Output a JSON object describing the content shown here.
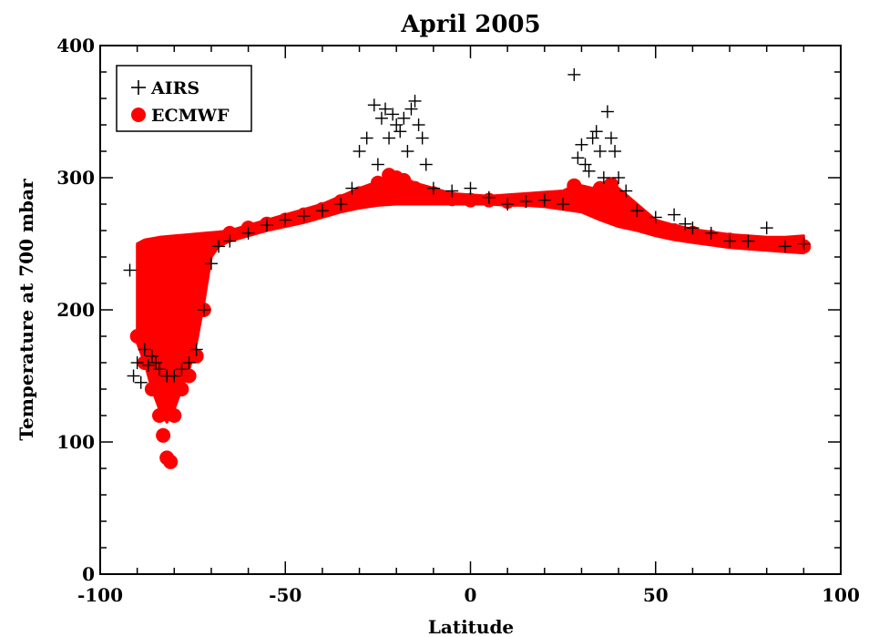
{
  "chart_data": {
    "type": "scatter",
    "title": "April 2005",
    "xlabel": "Latitude",
    "ylabel": "Temperature at 700 mbar",
    "xlim": [
      -100,
      100
    ],
    "ylim": [
      0,
      400
    ],
    "xticks": [
      -100,
      -50,
      0,
      50,
      100
    ],
    "yticks": [
      0,
      100,
      200,
      300,
      400
    ],
    "xtick_labels": [
      "-100",
      "-50",
      "0",
      "50",
      "100"
    ],
    "ytick_labels": [
      "0",
      "100",
      "200",
      "300",
      "400"
    ],
    "grid": false,
    "legend": {
      "position": "top-left",
      "entries": [
        {
          "label": "AIRS",
          "marker": "plus",
          "color": "#000000"
        },
        {
          "label": "ECMWF",
          "marker": "filled-circle",
          "color": "#ff0000"
        }
      ]
    },
    "series": [
      {
        "name": "AIRS",
        "marker": "plus",
        "color": "#000000",
        "x": [
          -92,
          -91,
          -90,
          -89,
          -88,
          -87,
          -86,
          -85,
          -84,
          -82,
          -80,
          -78,
          -76,
          -74,
          -72,
          -70,
          -68,
          -65,
          -60,
          -55,
          -50,
          -45,
          -40,
          -35,
          -32,
          -30,
          -28,
          -26,
          -25,
          -24,
          -23,
          -22,
          -21,
          -20,
          -19,
          -18,
          -17,
          -16,
          -15,
          -14,
          -13,
          -12,
          -10,
          -5,
          0,
          5,
          10,
          15,
          20,
          25,
          28,
          29,
          30,
          31,
          32,
          33,
          34,
          35,
          36,
          37,
          38,
          39,
          40,
          42,
          45,
          50,
          55,
          58,
          60,
          65,
          70,
          75,
          80,
          85,
          90
        ],
        "y": [
          230,
          150,
          160,
          145,
          170,
          158,
          165,
          160,
          155,
          150,
          150,
          155,
          160,
          170,
          200,
          235,
          248,
          252,
          258,
          264,
          268,
          271,
          275,
          280,
          292,
          320,
          330,
          355,
          310,
          345,
          352,
          330,
          348,
          340,
          335,
          345,
          320,
          352,
          358,
          340,
          330,
          310,
          292,
          290,
          292,
          285,
          280,
          282,
          283,
          280,
          378,
          315,
          325,
          310,
          305,
          330,
          335,
          320,
          300,
          350,
          330,
          320,
          300,
          290,
          275,
          270,
          272,
          265,
          262,
          258,
          252,
          252,
          262,
          248,
          250
        ]
      },
      {
        "name": "ECMWF",
        "marker": "filled-circle",
        "color": "#ff0000",
        "x": [
          -90,
          -88,
          -86,
          -84,
          -83,
          -82,
          -81,
          -80,
          -78,
          -76,
          -74,
          -72,
          -70,
          -65,
          -60,
          -55,
          -50,
          -45,
          -40,
          -35,
          -30,
          -25,
          -22,
          -20,
          -18,
          -15,
          -10,
          -5,
          0,
          5,
          10,
          15,
          20,
          25,
          28,
          30,
          32,
          35,
          38,
          40,
          45,
          50,
          55,
          60,
          65,
          70,
          75,
          80,
          85,
          90
        ],
        "y": [
          180,
          160,
          140,
          120,
          105,
          88,
          85,
          120,
          140,
          150,
          165,
          200,
          250,
          258,
          262,
          265,
          268,
          272,
          276,
          282,
          288,
          296,
          302,
          300,
          298,
          292,
          288,
          284,
          283,
          283,
          282,
          283,
          284,
          282,
          294,
          288,
          286,
          292,
          295,
          285,
          270,
          262,
          260,
          258,
          255,
          253,
          251,
          250,
          250,
          248
        ]
      }
    ]
  },
  "chart_extra": {
    "ecmwf_band_top": {
      "x": [
        -90,
        -88,
        -84,
        -80,
        -76,
        -72,
        -68,
        -65,
        -60,
        -55,
        -50,
        -45,
        -40,
        -35,
        -30,
        -25,
        -22,
        -20,
        -18,
        -15,
        -10,
        -5,
        0,
        5,
        10,
        15,
        20,
        25,
        28,
        30,
        33,
        35,
        38,
        40,
        45,
        50,
        55,
        60,
        65,
        70,
        75,
        80,
        85,
        90
      ],
      "y": [
        250,
        253,
        255,
        256,
        257,
        258,
        259,
        260,
        264,
        268,
        272,
        276,
        280,
        286,
        292,
        297,
        302,
        302,
        300,
        296,
        292,
        288,
        287,
        286,
        287,
        288,
        289,
        290,
        294,
        294,
        292,
        294,
        296,
        292,
        280,
        268,
        264,
        261,
        259,
        257,
        256,
        255,
        255,
        256
      ]
    },
    "ecmwf_band_bottom": {
      "x": [
        -90,
        -88,
        -86,
        -84,
        -82,
        -80,
        -78,
        -76,
        -74,
        -72,
        -70,
        -68,
        -65,
        -60,
        -55,
        -50,
        -45,
        -40,
        -35,
        -30,
        -25,
        -20,
        -15,
        -10,
        -5,
        0,
        5,
        10,
        15,
        20,
        25,
        30,
        35,
        40,
        45,
        50,
        55,
        60,
        65,
        70,
        75,
        80,
        85,
        90
      ],
      "y": [
        175,
        160,
        140,
        125,
        115,
        125,
        140,
        155,
        175,
        205,
        240,
        248,
        252,
        256,
        260,
        263,
        266,
        270,
        274,
        277,
        279,
        280,
        280,
        280,
        280,
        280,
        280,
        279,
        279,
        278,
        276,
        274,
        268,
        263,
        260,
        256,
        253,
        251,
        249,
        247,
        246,
        245,
        244,
        243
      ]
    }
  }
}
